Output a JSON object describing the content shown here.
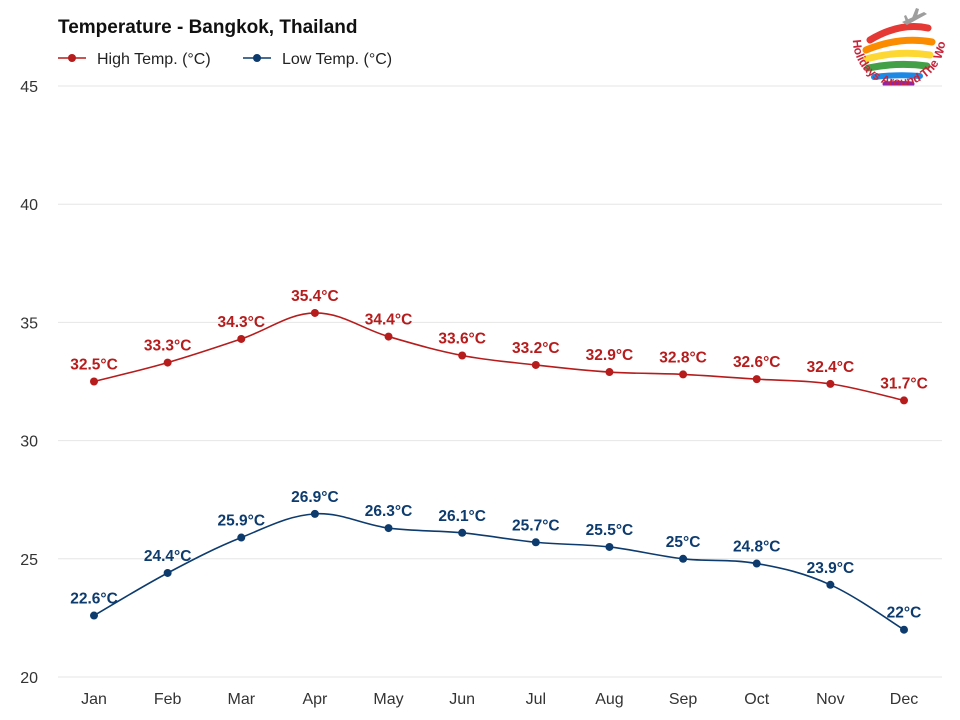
{
  "chart_data": {
    "type": "line",
    "title": "Temperature - Bangkok, Thailand",
    "categories": [
      "Jan",
      "Feb",
      "Mar",
      "Apr",
      "May",
      "Jun",
      "Jul",
      "Aug",
      "Sep",
      "Oct",
      "Nov",
      "Dec"
    ],
    "series": [
      {
        "name": "High Temp. (°C)",
        "color": "#b71c1c",
        "values": [
          32.5,
          33.3,
          34.3,
          35.4,
          34.4,
          33.6,
          33.2,
          32.9,
          32.8,
          32.6,
          32.4,
          31.7
        ],
        "labels": [
          "32.5°C",
          "33.3°C",
          "34.3°C",
          "35.4°C",
          "34.4°C",
          "33.6°C",
          "33.2°C",
          "32.9°C",
          "32.8°C",
          "32.6°C",
          "32.4°C",
          "31.7°C"
        ]
      },
      {
        "name": "Low Temp. (°C)",
        "color": "#0d3b6e",
        "values": [
          22.6,
          24.4,
          25.9,
          26.9,
          26.3,
          26.1,
          25.7,
          25.5,
          25,
          24.8,
          23.9,
          22
        ],
        "labels": [
          "22.6°C",
          "24.4°C",
          "25.9°C",
          "26.9°C",
          "26.3°C",
          "26.1°C",
          "25.7°C",
          "25.5°C",
          "25°C",
          "24.8°C",
          "23.9°C",
          "22°C"
        ]
      }
    ],
    "yticks": [
      "20",
      "25",
      "30",
      "35",
      "40",
      "45"
    ],
    "ylim": [
      20,
      45
    ],
    "grid": true,
    "legend_position": "top-left"
  },
  "logo": {
    "text": "Holidays Around The World",
    "icon": "airplane-icon"
  }
}
